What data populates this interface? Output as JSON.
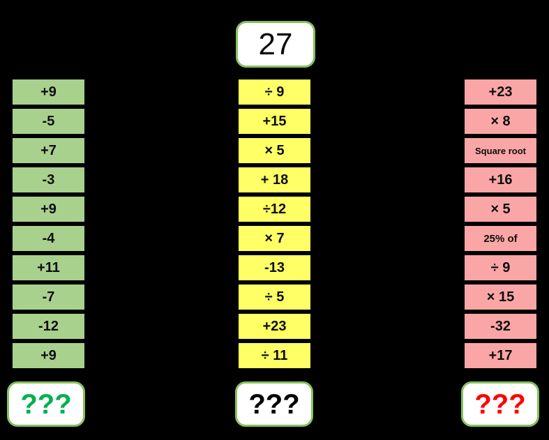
{
  "start": {
    "value": "27"
  },
  "colors": {
    "background": "#000000",
    "box_border_green": "#85C35E",
    "green_cell": "#A9D18E",
    "yellow_cell": "#FFFF66",
    "pink_cell": "#FBA6A6",
    "result_green_text": "#00B050",
    "result_black_text": "#000000",
    "result_red_text": "#FF0000"
  },
  "columns": [
    {
      "name": "green-chain",
      "cell_color": "#A9D18E",
      "steps": [
        "+9",
        "-5",
        "+7",
        "-3",
        "+9",
        "-4",
        "+11",
        "-7",
        "-12",
        "+9"
      ],
      "result": "???",
      "result_color": "#00B050"
    },
    {
      "name": "yellow-chain",
      "cell_color": "#FFFF66",
      "steps": [
        "÷ 9",
        "+15",
        "× 5",
        "+ 18",
        "÷12",
        "× 7",
        "-13",
        "÷ 5",
        "+23",
        "÷ 11"
      ],
      "result": "???",
      "result_color": "#000000"
    },
    {
      "name": "pink-chain",
      "cell_color": "#FBA6A6",
      "steps": [
        "+23",
        "× 8",
        "Square root",
        "+16",
        "× 5",
        "25% of",
        "÷ 9",
        "× 15",
        "-32",
        "+17"
      ],
      "result": "???",
      "result_color": "#FF0000"
    }
  ]
}
